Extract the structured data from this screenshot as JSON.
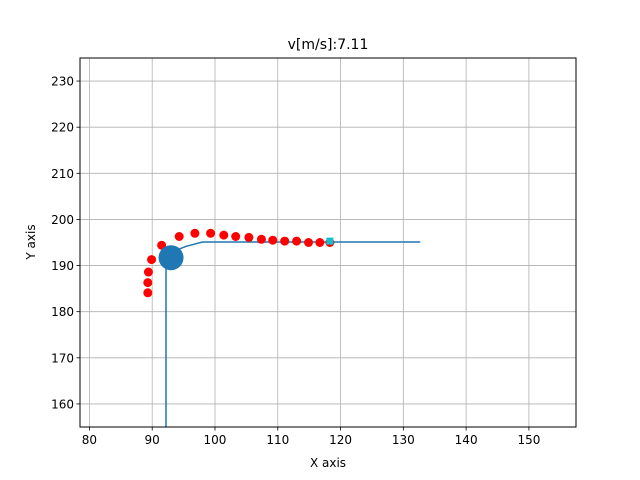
{
  "chart_data": {
    "type": "scatter",
    "title": "v[m/s]:7.11",
    "xlabel": "X axis",
    "ylabel": "Y axis",
    "xlim": [
      78.5,
      157.5
    ],
    "ylim": [
      155,
      235
    ],
    "xticks": [
      80,
      90,
      100,
      110,
      120,
      130,
      140,
      150
    ],
    "yticks": [
      160,
      170,
      180,
      190,
      200,
      210,
      220,
      230
    ],
    "grid": true,
    "legend": "none",
    "series": [
      {
        "kind": "line",
        "color": "#1f77b4",
        "points": [
          [
            92.2,
            155
          ],
          [
            92.2,
            192.7
          ],
          [
            93.5,
            193.2
          ],
          [
            95.5,
            194.2
          ],
          [
            98,
            195.1
          ],
          [
            100,
            195.1
          ],
          [
            110,
            195.1
          ],
          [
            120,
            195.1
          ],
          [
            132.7,
            195.1
          ]
        ]
      },
      {
        "kind": "markers",
        "color": "#ff0000",
        "points": [
          [
            89.3,
            184.1
          ],
          [
            89.3,
            186.3
          ],
          [
            89.4,
            188.6
          ],
          [
            89.9,
            191.3
          ],
          [
            91.5,
            194.4
          ],
          [
            94.3,
            196.3
          ],
          [
            96.8,
            197.0
          ],
          [
            99.3,
            197.0
          ],
          [
            101.4,
            196.6
          ],
          [
            103.3,
            196.3
          ],
          [
            105.4,
            196.1
          ],
          [
            107.4,
            195.7
          ],
          [
            109.2,
            195.5
          ],
          [
            111.1,
            195.3
          ],
          [
            113.0,
            195.3
          ],
          [
            114.9,
            195.0
          ],
          [
            116.7,
            195.0
          ],
          [
            118.3,
            195.0
          ]
        ]
      },
      {
        "kind": "vehicle",
        "color": "#1f77b4",
        "points": [
          [
            93.0,
            191.7
          ]
        ]
      },
      {
        "kind": "target",
        "color": "#17becf",
        "points": [
          [
            118.3,
            195.3
          ]
        ]
      }
    ]
  }
}
